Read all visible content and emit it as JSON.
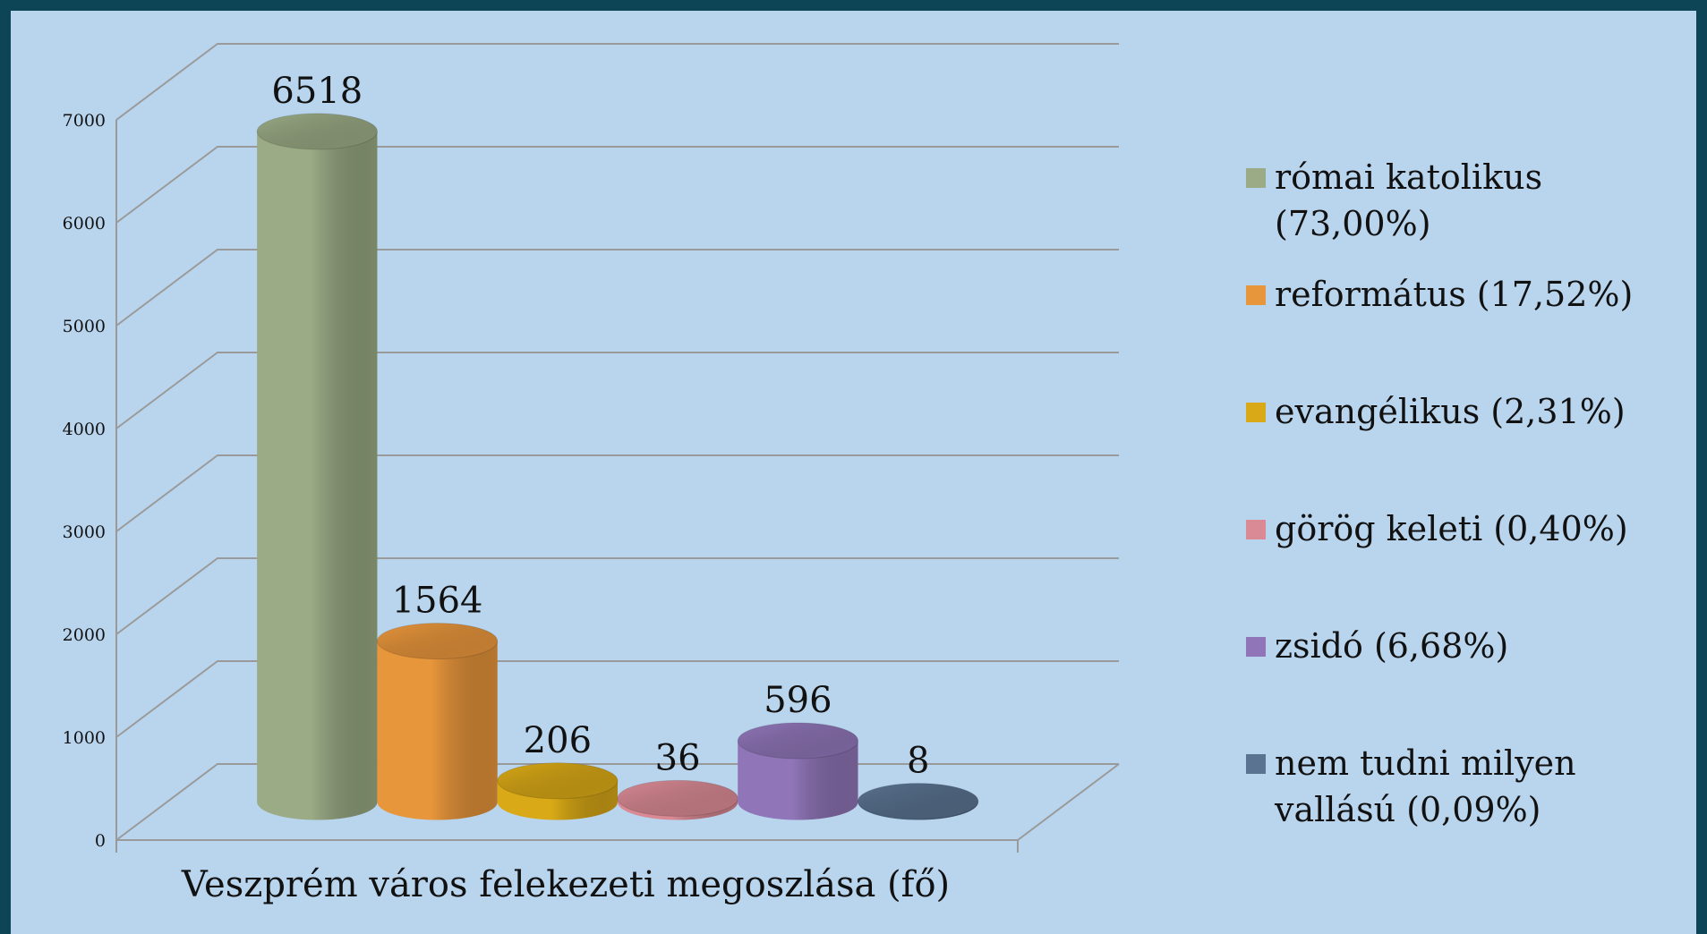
{
  "chart_data": {
    "type": "bar",
    "categories": [
      "Veszprém város felekezeti megoszlása (fő)"
    ],
    "series": [
      {
        "name": "római katolikus (73,00%)",
        "color": "#9aab85",
        "values": [
          6518
        ]
      },
      {
        "name": "református (17,52%)",
        "color": "#e8963c",
        "values": [
          1564
        ]
      },
      {
        "name": "evangélikus (2,31%)",
        "color": "#d9a917",
        "values": [
          206
        ]
      },
      {
        "name": "görög keleti (0,40%)",
        "color": "#d98a94",
        "values": [
          36
        ]
      },
      {
        "name": "zsidó (6,68%)",
        "color": "#9076b8",
        "values": [
          596
        ]
      },
      {
        "name": "nem tudni milyen vallású (0,09%)",
        "color": "#5a7390",
        "values": [
          8
        ]
      }
    ],
    "ylim": [
      0,
      7000
    ],
    "yticks": [
      0,
      1000,
      2000,
      3000,
      4000,
      5000,
      6000,
      7000
    ],
    "grid": true,
    "legend": "right"
  }
}
